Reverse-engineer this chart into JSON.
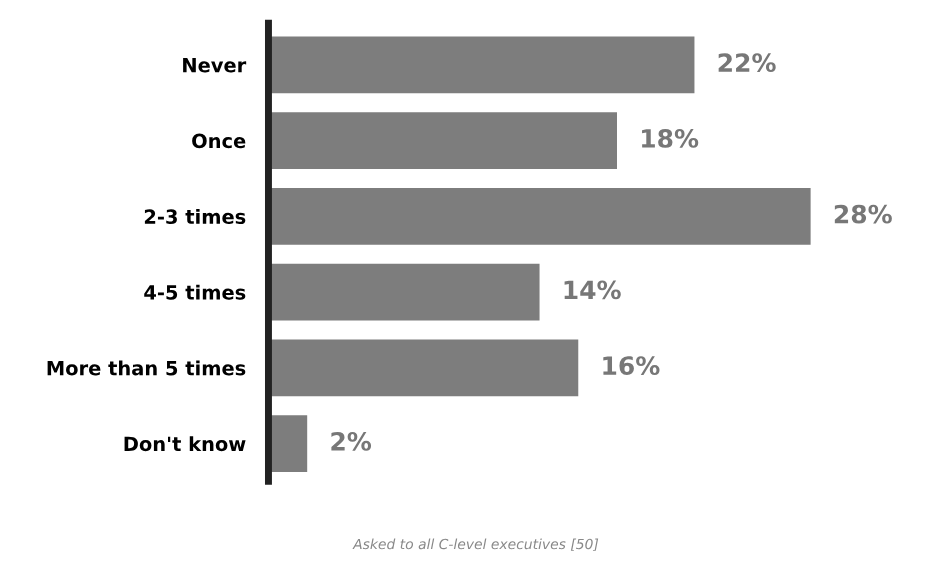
{
  "chart_data": {
    "type": "bar",
    "orientation": "horizontal",
    "categories": [
      "Never",
      "Once",
      "2-3 times",
      "4-5 times",
      "More than 5 times",
      "Don't know"
    ],
    "values": [
      22,
      18,
      28,
      14,
      16,
      2
    ],
    "value_labels": [
      "22%",
      "18%",
      "28%",
      "14%",
      "16%",
      "2%"
    ],
    "color": "#7d7d7d",
    "grid": false,
    "legend": false,
    "annotations": [
      "Asked to all C-level executives [50]"
    ]
  }
}
